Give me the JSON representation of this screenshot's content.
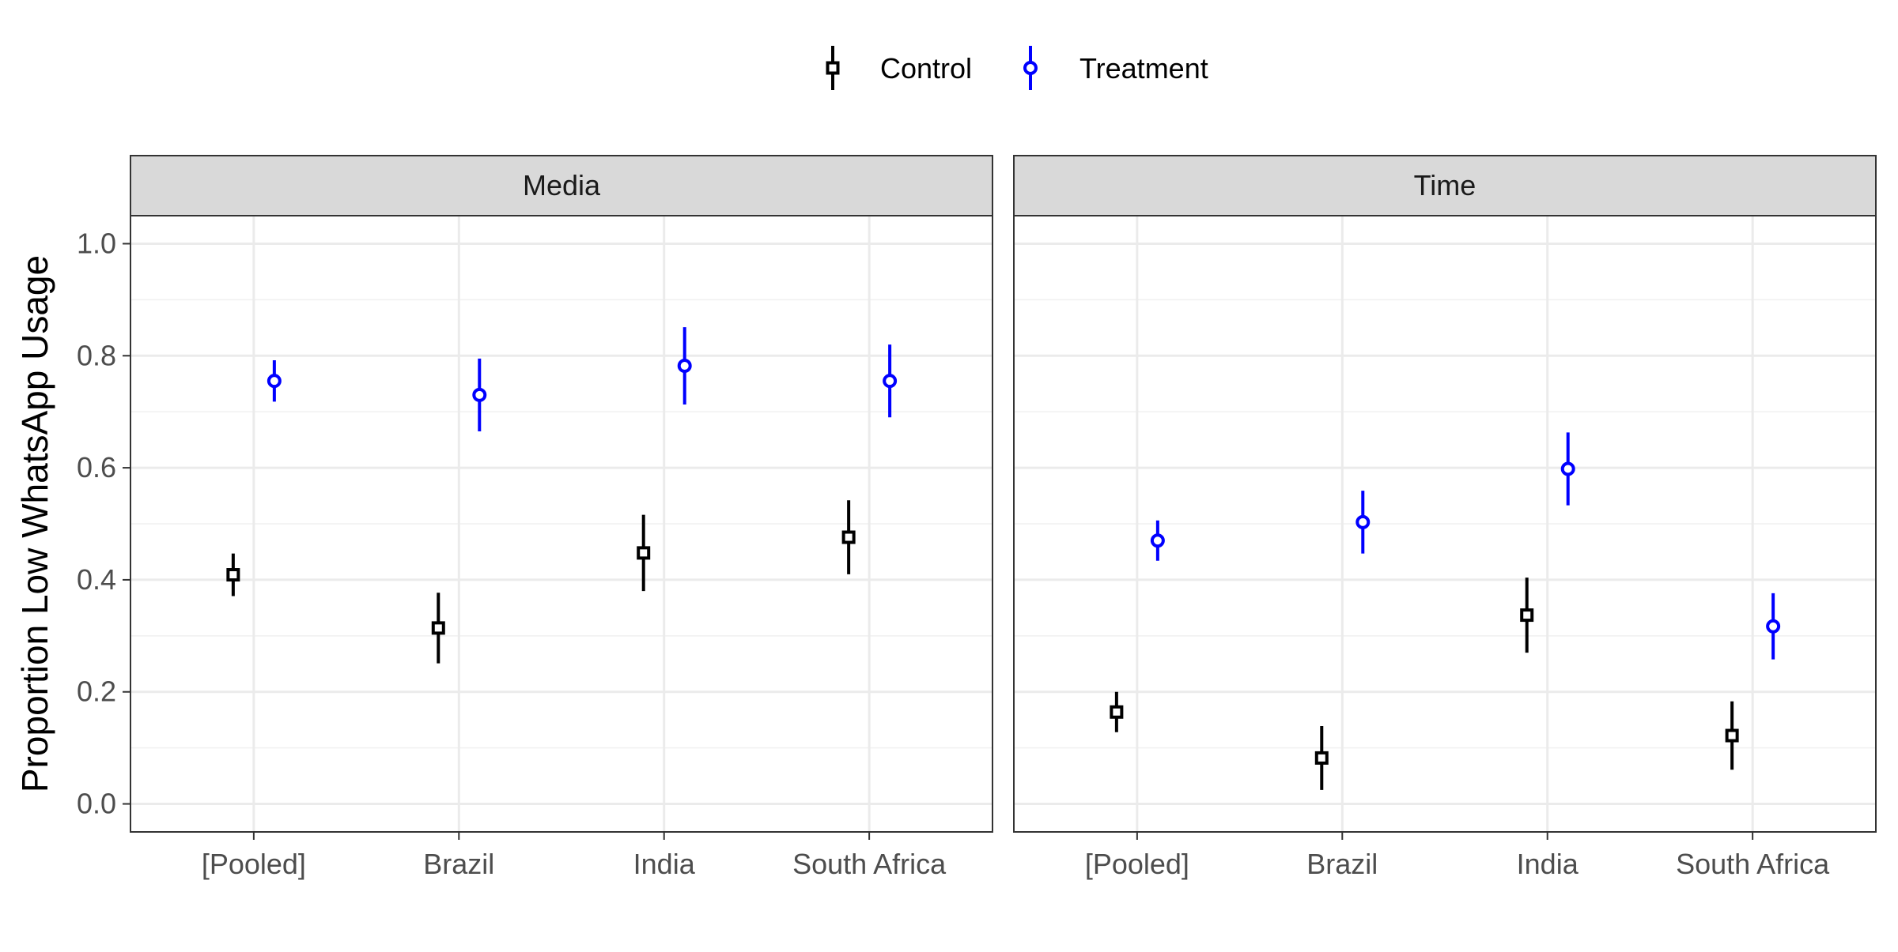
{
  "chart_data": {
    "type": "scatter",
    "subtype": "point-range (estimate with interval) by facet",
    "ylabel": "Proportion Low WhatsApp Usage",
    "xlabel": "",
    "ylim": [
      -0.05,
      1.05
    ],
    "y_ticks": [
      "0.0",
      "0.2",
      "0.4",
      "0.6",
      "0.8",
      "1.0"
    ],
    "categories": [
      "[Pooled]",
      "Brazil",
      "India",
      "South Africa"
    ],
    "grid": true,
    "legend_position": "top",
    "series_meta": [
      {
        "name": "Control",
        "color": "#000000",
        "marker": "square"
      },
      {
        "name": "Treatment",
        "color": "#0000ff",
        "marker": "circle"
      }
    ],
    "facets": [
      {
        "label": "Media",
        "series": [
          {
            "name": "Control",
            "values": [
              0.409,
              0.314,
              0.448,
              0.476
            ],
            "lower": [
              0.371,
              0.251,
              0.38,
              0.41
            ],
            "upper": [
              0.447,
              0.377,
              0.516,
              0.542
            ]
          },
          {
            "name": "Treatment",
            "values": [
              0.755,
              0.73,
              0.782,
              0.755
            ],
            "lower": [
              0.718,
              0.665,
              0.713,
              0.69
            ],
            "upper": [
              0.792,
              0.795,
              0.851,
              0.82
            ]
          }
        ]
      },
      {
        "label": "Time",
        "series": [
          {
            "name": "Control",
            "values": [
              0.164,
              0.082,
              0.337,
              0.122
            ],
            "lower": [
              0.128,
              0.025,
              0.27,
              0.061
            ],
            "upper": [
              0.2,
              0.139,
              0.404,
              0.183
            ]
          },
          {
            "name": "Treatment",
            "values": [
              0.47,
              0.503,
              0.598,
              0.317
            ],
            "lower": [
              0.434,
              0.447,
              0.533,
              0.258
            ],
            "upper": [
              0.506,
              0.559,
              0.663,
              0.376
            ]
          }
        ]
      }
    ]
  }
}
